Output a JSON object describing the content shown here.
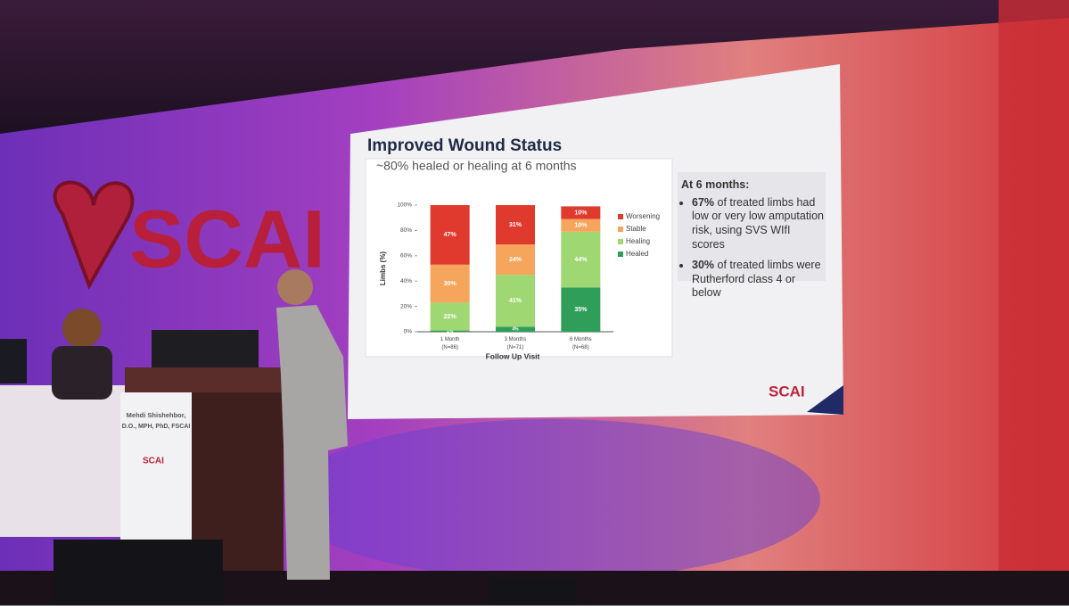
{
  "chart_data": {
    "type": "stacked-bar",
    "title": "Improved Wound Status",
    "subtitle": "~80% healed or healing at 6 months",
    "x_label": "Follow Up Visit",
    "y_label": "Limbs (%)",
    "categories": [
      "1 Month\n(N=86)",
      "3 Months\n(N=71)",
      "6 Months\n(N=68)"
    ],
    "series": [
      {
        "name": "Healed",
        "color": "#2f9e58",
        "values": [
          1,
          4,
          35
        ],
        "value_labels": [
          "1%",
          "4%",
          "35%"
        ]
      },
      {
        "name": "Healing",
        "color": "#9fd873",
        "values": [
          22,
          41,
          44
        ],
        "value_labels": [
          "22%",
          "41%",
          "44%"
        ]
      },
      {
        "name": "Stable",
        "color": "#f5a55c",
        "values": [
          30,
          24,
          10
        ],
        "value_labels": [
          "30%",
          "24%",
          "10%"
        ]
      },
      {
        "name": "Worsening",
        "color": "#e0392e",
        "values": [
          47,
          31,
          10
        ],
        "value_labels": [
          "47%",
          "31%",
          "10%"
        ]
      }
    ],
    "ylim": [
      0,
      100
    ],
    "yticks": [
      {
        "value": 0,
        "label": "0%"
      },
      {
        "value": 20,
        "label": "20%"
      },
      {
        "value": 40,
        "label": "40%"
      },
      {
        "value": 60,
        "label": "60%"
      },
      {
        "value": 80,
        "label": "80%"
      },
      {
        "value": 100,
        "label": "100%"
      }
    ],
    "legend": "right",
    "notes": {
      "heading": "At 6 months:",
      "items": [
        {
          "bold": "67%",
          "text": "of treated limbs had low or very low amputation risk, using SVS WIfI scores"
        },
        {
          "bold": "30%",
          "text": "of treated limbs were Rutherford class 4 or below"
        }
      ]
    },
    "logo": "SCAI"
  },
  "scene": {
    "backdrop_logo": "SCAI",
    "nameplate": {
      "name": "Mehdi Shishehbor,",
      "credentials": "D.O., MPH, PhD, FSCAI",
      "logo": "SCAI"
    }
  }
}
